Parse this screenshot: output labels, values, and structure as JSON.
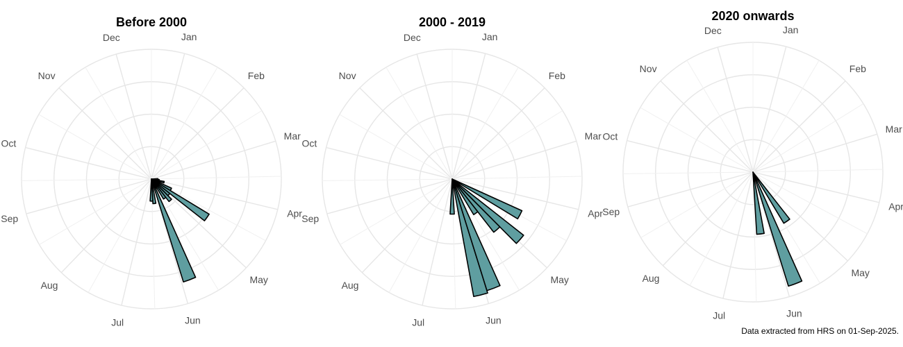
{
  "caption": "Data extracted from HRS on 01-Sep-2025.",
  "colors": {
    "bar_fill": "#5f9ea0",
    "bar_stroke": "#000000",
    "grid": "#e6e6e6",
    "label": "#4d4d4d"
  },
  "chart_data": [
    {
      "type": "rose",
      "title": "Before 2000",
      "months": [
        "Jan",
        "Feb",
        "Mar",
        "Apr",
        "May",
        "Jun",
        "Jul",
        "Aug",
        "Sep",
        "Oct",
        "Nov",
        "Dec"
      ],
      "bin_width_days": 7,
      "rlim": [
        0,
        1
      ],
      "bars": [
        {
          "day": 88,
          "value": 0.05
        },
        {
          "day": 95,
          "value": 0.06
        },
        {
          "day": 102,
          "value": 0.1
        },
        {
          "day": 109,
          "value": 0.07
        },
        {
          "day": 116,
          "value": 0.17
        },
        {
          "day": 123,
          "value": 0.52
        },
        {
          "day": 130,
          "value": 0.18
        },
        {
          "day": 137,
          "value": 0.22
        },
        {
          "day": 144,
          "value": 0.18
        },
        {
          "day": 151,
          "value": 0.08
        },
        {
          "day": 158,
          "value": 0.83
        },
        {
          "day": 172,
          "value": 0.19
        },
        {
          "day": 179,
          "value": 0.17
        }
      ]
    },
    {
      "type": "rose",
      "title": "2000 - 2019",
      "months": [
        "Jan",
        "Feb",
        "Mar",
        "Apr",
        "May",
        "Jun",
        "Jul",
        "Aug",
        "Sep",
        "Oct",
        "Nov",
        "Dec"
      ],
      "bin_width_days": 7,
      "rlim": [
        0,
        1
      ],
      "bars": [
        {
          "day": 116,
          "value": 0.59
        },
        {
          "day": 130,
          "value": 0.7
        },
        {
          "day": 137,
          "value": 0.52
        },
        {
          "day": 144,
          "value": 0.32
        },
        {
          "day": 158,
          "value": 0.9
        },
        {
          "day": 165,
          "value": 0.92
        },
        {
          "day": 179,
          "value": 0.27
        }
      ]
    },
    {
      "type": "rose",
      "title": "2020 onwards",
      "months": [
        "Jan",
        "Feb",
        "Mar",
        "Apr",
        "May",
        "Jun",
        "Jul",
        "Aug",
        "Sep",
        "Oct",
        "Nov",
        "Dec"
      ],
      "bin_width_days": 7,
      "rlim": [
        0,
        1
      ],
      "bars": [
        {
          "day": 144,
          "value": 0.46
        },
        {
          "day": 158,
          "value": 0.92
        },
        {
          "day": 172,
          "value": 0.48
        }
      ]
    }
  ]
}
